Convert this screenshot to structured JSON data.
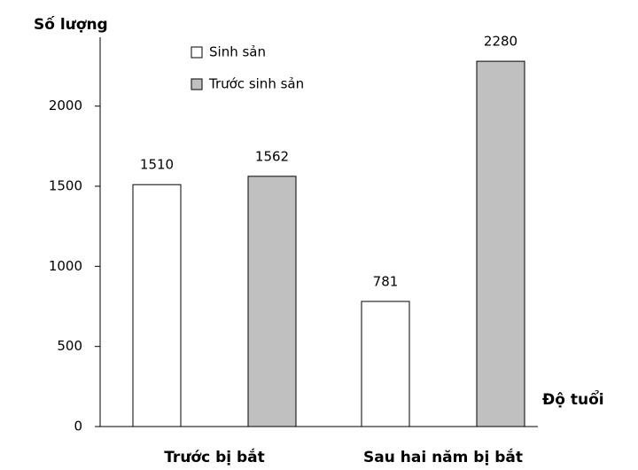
{
  "chart_data": {
    "type": "bar",
    "title": "Số lượng",
    "x_label": "Độ tuổi",
    "categories": [
      "Trước bị bắt",
      "Sau hai năm bị bắt"
    ],
    "series": [
      {
        "name": "Sinh sản",
        "color": "#ffffff",
        "values": [
          1510,
          781
        ]
      },
      {
        "name": "Trước sinh sản",
        "color": "#c0c0c0",
        "values": [
          1562,
          2280
        ]
      }
    ],
    "ylim": [
      0,
      2430
    ],
    "yticks": [
      0,
      500,
      1000,
      1500,
      2000
    ],
    "grid": false,
    "legend": "top"
  }
}
